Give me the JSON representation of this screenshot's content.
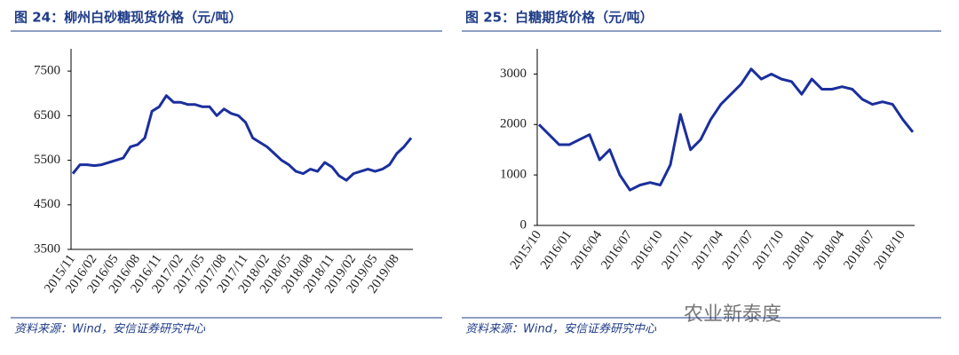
{
  "chart_data": [
    {
      "type": "line",
      "title": "图 24：柳州白砂糖现货价格（元/吨）",
      "source": "资料来源：Wind，安信证券研究中心",
      "categories": [
        "2015/11",
        null,
        null,
        "2016/02",
        null,
        null,
        "2016/05",
        null,
        null,
        "2016/08",
        null,
        null,
        "2016/11",
        null,
        null,
        "2017/02",
        null,
        null,
        "2017/05",
        null,
        null,
        "2017/08",
        null,
        null,
        "2017/11",
        null,
        null,
        "2018/02",
        null,
        null,
        "2018/05",
        null,
        null,
        "2018/08",
        null,
        null,
        "2018/11",
        null,
        null,
        "2019/02",
        null,
        null,
        "2019/05",
        null,
        null,
        "2019/08",
        null,
        null
      ],
      "values": [
        5200,
        5400,
        5400,
        5380,
        5400,
        5450,
        5500,
        5550,
        5800,
        5850,
        6000,
        6600,
        6700,
        6950,
        6800,
        6800,
        6750,
        6750,
        6700,
        6700,
        6500,
        6650,
        6550,
        6500,
        6350,
        6000,
        5900,
        5800,
        5650,
        5500,
        5400,
        5250,
        5200,
        5300,
        5250,
        5450,
        5350,
        5150,
        5050,
        5200,
        5250,
        5300,
        5250,
        5300,
        5400,
        5650,
        5800,
        6000
      ],
      "color": "#1b2f9c",
      "ylim": [
        3500,
        8000
      ],
      "yticks": [
        3500,
        4500,
        5500,
        6500,
        7500
      ]
    },
    {
      "type": "line",
      "title": "图 25：白糖期货价格（元/吨）",
      "source": "资料来源：Wind，安信证券研究中心",
      "categories": [
        "2015/10",
        null,
        null,
        "2016/01",
        null,
        null,
        "2016/04",
        null,
        null,
        "2016/07",
        null,
        null,
        "2016/10",
        null,
        null,
        "2017/01",
        null,
        null,
        "2017/04",
        null,
        null,
        "2017/07",
        null,
        null,
        "2017/10",
        null,
        null,
        "2018/01",
        null,
        null,
        "2018/04",
        null,
        null,
        "2018/07",
        null,
        null,
        "2018/10",
        null
      ],
      "values": [
        2000,
        1800,
        1600,
        1600,
        1700,
        1800,
        1300,
        1500,
        1000,
        700,
        800,
        850,
        800,
        1200,
        2200,
        1500,
        1700,
        2100,
        2400,
        2600,
        2800,
        3100,
        2900,
        3000,
        2900,
        2850,
        2600,
        2900,
        2700,
        2700,
        2750,
        2700,
        2500,
        2400,
        2450,
        2400,
        2100,
        1850
      ],
      "color": "#1b2f9c",
      "ylim": [
        0,
        3500
      ],
      "yticks": [
        0,
        1000,
        2000,
        3000
      ]
    }
  ],
  "watermark": "农业新泰度"
}
